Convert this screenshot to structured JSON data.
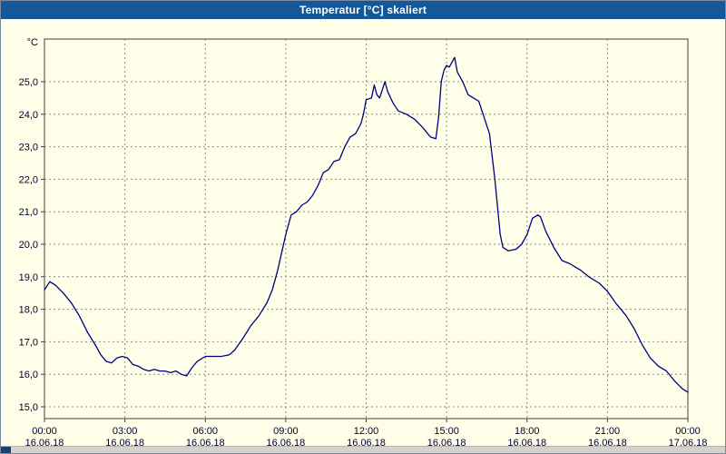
{
  "window": {
    "title": "Temperatur [°C] skaliert",
    "titlebar_color": "#14589A",
    "background_color": "#FFFEE9"
  },
  "chart_data": {
    "type": "line",
    "title": "Temperatur [°C] skaliert",
    "y_unit_label": "°C",
    "xlabel": "",
    "ylabel": "°C",
    "line_color": "#000080",
    "grid_color": "#8a8a8a",
    "axis_color": "#404040",
    "plot_bg": "#FFFEE9",
    "ylim": [
      14.6,
      26.4
    ],
    "grid": true,
    "legend_position": "none",
    "y_ticks": [
      {
        "value": 15,
        "label": "15,0"
      },
      {
        "value": 16,
        "label": "16,0"
      },
      {
        "value": 17,
        "label": "17,0"
      },
      {
        "value": 18,
        "label": "18,0"
      },
      {
        "value": 19,
        "label": "19,0"
      },
      {
        "value": 20,
        "label": "20,0"
      },
      {
        "value": 21,
        "label": "21,0"
      },
      {
        "value": 22,
        "label": "22,0"
      },
      {
        "value": 23,
        "label": "23,0"
      },
      {
        "value": 24,
        "label": "24,0"
      },
      {
        "value": 25,
        "label": "25,0"
      }
    ],
    "x_ticks": [
      {
        "hour": 0,
        "time": "00:00",
        "date": "16.06.18"
      },
      {
        "hour": 3,
        "time": "03:00",
        "date": "16.06.18"
      },
      {
        "hour": 6,
        "time": "06:00",
        "date": "16.06.18"
      },
      {
        "hour": 9,
        "time": "09:00",
        "date": "16.06.18"
      },
      {
        "hour": 12,
        "time": "12:00",
        "date": "16.06.18"
      },
      {
        "hour": 15,
        "time": "15:00",
        "date": "16.06.18"
      },
      {
        "hour": 18,
        "time": "18:00",
        "date": "16.06.18"
      },
      {
        "hour": 21,
        "time": "21:00",
        "date": "16.06.18"
      },
      {
        "hour": 24,
        "time": "00:00",
        "date": "17.06.18"
      }
    ],
    "series": [
      {
        "name": "Temperatur",
        "points": [
          [
            0.0,
            18.6
          ],
          [
            0.2,
            18.85
          ],
          [
            0.4,
            18.75
          ],
          [
            0.7,
            18.5
          ],
          [
            1.0,
            18.2
          ],
          [
            1.3,
            17.8
          ],
          [
            1.6,
            17.3
          ],
          [
            1.9,
            16.9
          ],
          [
            2.1,
            16.6
          ],
          [
            2.3,
            16.4
          ],
          [
            2.5,
            16.35
          ],
          [
            2.7,
            16.5
          ],
          [
            2.9,
            16.55
          ],
          [
            3.1,
            16.5
          ],
          [
            3.3,
            16.3
          ],
          [
            3.5,
            16.25
          ],
          [
            3.7,
            16.15
          ],
          [
            3.9,
            16.1
          ],
          [
            4.1,
            16.15
          ],
          [
            4.3,
            16.1
          ],
          [
            4.5,
            16.1
          ],
          [
            4.7,
            16.05
          ],
          [
            4.9,
            16.1
          ],
          [
            5.1,
            16.0
          ],
          [
            5.3,
            15.95
          ],
          [
            5.5,
            16.2
          ],
          [
            5.7,
            16.4
          ],
          [
            6.0,
            16.55
          ],
          [
            6.3,
            16.55
          ],
          [
            6.6,
            16.55
          ],
          [
            6.9,
            16.6
          ],
          [
            7.1,
            16.75
          ],
          [
            7.4,
            17.1
          ],
          [
            7.7,
            17.5
          ],
          [
            8.0,
            17.8
          ],
          [
            8.3,
            18.2
          ],
          [
            8.5,
            18.6
          ],
          [
            8.7,
            19.2
          ],
          [
            9.0,
            20.3
          ],
          [
            9.2,
            20.9
          ],
          [
            9.4,
            21.0
          ],
          [
            9.6,
            21.2
          ],
          [
            9.8,
            21.3
          ],
          [
            10.0,
            21.5
          ],
          [
            10.2,
            21.8
          ],
          [
            10.4,
            22.2
          ],
          [
            10.6,
            22.3
          ],
          [
            10.8,
            22.55
          ],
          [
            11.0,
            22.6
          ],
          [
            11.2,
            23.0
          ],
          [
            11.4,
            23.3
          ],
          [
            11.6,
            23.4
          ],
          [
            11.8,
            23.7
          ],
          [
            11.9,
            24.0
          ],
          [
            12.0,
            24.45
          ],
          [
            12.2,
            24.5
          ],
          [
            12.3,
            24.9
          ],
          [
            12.4,
            24.6
          ],
          [
            12.5,
            24.5
          ],
          [
            12.7,
            25.0
          ],
          [
            12.8,
            24.7
          ],
          [
            13.0,
            24.35
          ],
          [
            13.2,
            24.1
          ],
          [
            13.5,
            24.0
          ],
          [
            13.8,
            23.85
          ],
          [
            14.1,
            23.6
          ],
          [
            14.4,
            23.3
          ],
          [
            14.6,
            23.25
          ],
          [
            14.7,
            23.9
          ],
          [
            14.8,
            25.0
          ],
          [
            14.9,
            25.35
          ],
          [
            15.0,
            25.5
          ],
          [
            15.1,
            25.45
          ],
          [
            15.2,
            25.6
          ],
          [
            15.3,
            25.75
          ],
          [
            15.4,
            25.3
          ],
          [
            15.6,
            25.0
          ],
          [
            15.8,
            24.6
          ],
          [
            16.0,
            24.5
          ],
          [
            16.2,
            24.4
          ],
          [
            16.4,
            23.9
          ],
          [
            16.6,
            23.4
          ],
          [
            16.8,
            22.0
          ],
          [
            17.0,
            20.3
          ],
          [
            17.1,
            19.9
          ],
          [
            17.3,
            19.8
          ],
          [
            17.6,
            19.85
          ],
          [
            17.8,
            20.0
          ],
          [
            18.0,
            20.3
          ],
          [
            18.2,
            20.8
          ],
          [
            18.4,
            20.9
          ],
          [
            18.5,
            20.85
          ],
          [
            18.7,
            20.4
          ],
          [
            19.0,
            19.9
          ],
          [
            19.3,
            19.5
          ],
          [
            19.6,
            19.4
          ],
          [
            20.0,
            19.2
          ],
          [
            20.3,
            19.0
          ],
          [
            20.7,
            18.8
          ],
          [
            21.0,
            18.55
          ],
          [
            21.3,
            18.2
          ],
          [
            21.7,
            17.8
          ],
          [
            22.0,
            17.4
          ],
          [
            22.3,
            16.9
          ],
          [
            22.6,
            16.5
          ],
          [
            22.9,
            16.25
          ],
          [
            23.2,
            16.1
          ],
          [
            23.5,
            15.8
          ],
          [
            23.8,
            15.55
          ],
          [
            24.0,
            15.45
          ]
        ]
      }
    ]
  }
}
